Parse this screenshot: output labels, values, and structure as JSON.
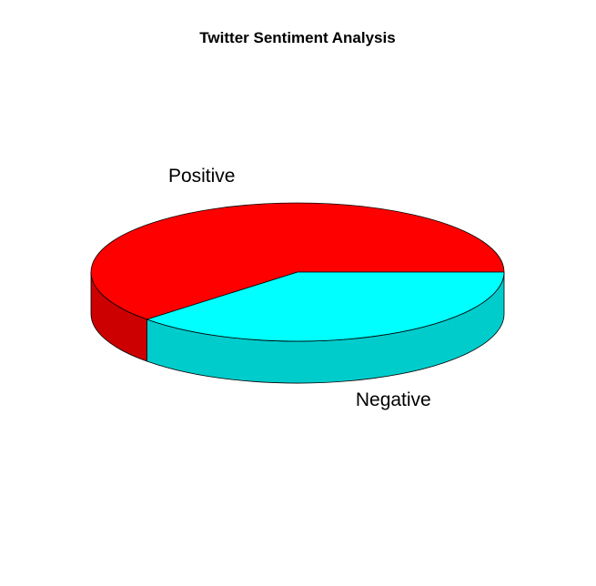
{
  "chart_data": {
    "type": "pie",
    "title": "Twitter Sentiment Analysis",
    "three_d": true,
    "slices": [
      {
        "label": "Positive",
        "value": 62,
        "color": "#ff0000",
        "side_color": "#cc0000"
      },
      {
        "label": "Negative",
        "value": 38,
        "color": "#00ffff",
        "side_color": "#00cccc"
      }
    ],
    "legend": "none"
  }
}
